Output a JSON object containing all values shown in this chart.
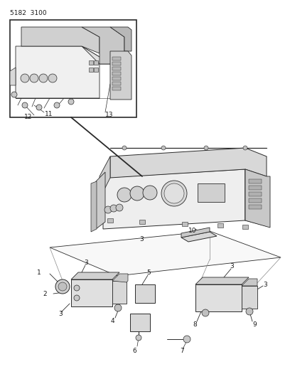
{
  "page_code": "5182  3100",
  "bg_color": "#ffffff",
  "line_color": "#2a2a2a",
  "figsize": [
    4.08,
    5.33
  ],
  "dpi": 100,
  "fig_w": 408,
  "fig_h": 533
}
